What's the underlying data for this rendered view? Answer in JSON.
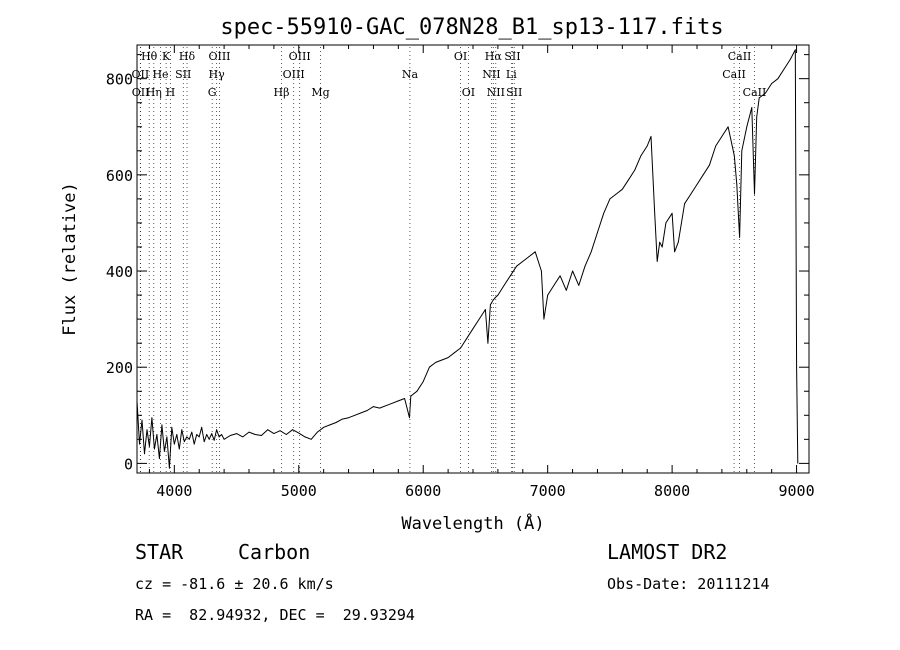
{
  "chart_data": {
    "type": "line",
    "title": "spec-55910-GAC_078N28_B1_sp13-117.fits",
    "xlabel": "Wavelength (Å)",
    "ylabel": "Flux (relative)",
    "xlim": [
      3700,
      9100
    ],
    "ylim": [
      -20,
      870
    ],
    "x_ticks": [
      4000,
      5000,
      6000,
      7000,
      8000,
      9000
    ],
    "y_ticks": [
      0,
      200,
      400,
      600,
      800
    ],
    "grid": false,
    "series": [
      {
        "x": [
          3700,
          3720,
          3740,
          3760,
          3780,
          3800,
          3820,
          3840,
          3860,
          3880,
          3900,
          3920,
          3940,
          3960,
          3980,
          4000,
          4020,
          4040,
          4060,
          4080,
          4100,
          4120,
          4140,
          4160,
          4180,
          4200,
          4220,
          4240,
          4260,
          4280,
          4300,
          4320,
          4340,
          4360,
          4380,
          4400,
          4450,
          4500,
          4550,
          4600,
          4650,
          4700,
          4750,
          4800,
          4850,
          4900,
          4950,
          5000,
          5050,
          5100,
          5150,
          5200,
          5250,
          5300,
          5350,
          5400,
          5450,
          5500,
          5550,
          5600,
          5650,
          5700,
          5750,
          5800,
          5850,
          5890,
          5900,
          5950,
          6000,
          6050,
          6100,
          6150,
          6200,
          6250,
          6300,
          6350,
          6400,
          6450,
          6500,
          6520,
          6540,
          6563,
          6580,
          6600,
          6650,
          6700,
          6750,
          6800,
          6850,
          6900,
          6950,
          6970,
          7000,
          7050,
          7100,
          7150,
          7200,
          7250,
          7300,
          7350,
          7400,
          7450,
          7500,
          7550,
          7600,
          7650,
          7700,
          7750,
          7800,
          7830,
          7860,
          7880,
          7900,
          7920,
          7950,
          8000,
          8020,
          8050,
          8100,
          8150,
          8200,
          8250,
          8300,
          8350,
          8400,
          8450,
          8500,
          8520,
          8542,
          8560,
          8600,
          8640,
          8662,
          8680,
          8700,
          8750,
          8800,
          8850,
          8900,
          8950,
          8990,
          9000,
          9010
        ],
        "values": [
          130,
          40,
          90,
          20,
          70,
          35,
          95,
          30,
          60,
          10,
          80,
          25,
          55,
          -10,
          75,
          40,
          60,
          30,
          70,
          45,
          55,
          50,
          65,
          40,
          60,
          55,
          75,
          45,
          60,
          50,
          62,
          48,
          70,
          55,
          60,
          50,
          58,
          62,
          55,
          65,
          60,
          58,
          70,
          62,
          68,
          60,
          70,
          63,
          55,
          50,
          65,
          75,
          80,
          85,
          92,
          95,
          100,
          105,
          110,
          118,
          115,
          120,
          125,
          130,
          135,
          95,
          140,
          150,
          170,
          200,
          210,
          215,
          220,
          230,
          240,
          260,
          280,
          300,
          320,
          250,
          330,
          340,
          345,
          350,
          370,
          390,
          410,
          420,
          430,
          440,
          400,
          300,
          350,
          370,
          390,
          360,
          400,
          370,
          410,
          440,
          480,
          520,
          550,
          560,
          570,
          590,
          610,
          640,
          660,
          680,
          520,
          420,
          460,
          450,
          500,
          520,
          440,
          460,
          540,
          560,
          580,
          600,
          620,
          660,
          680,
          700,
          640,
          580,
          470,
          650,
          700,
          740,
          560,
          720,
          760,
          770,
          790,
          800,
          820,
          840,
          860,
          200,
          0
        ]
      }
    ],
    "line_markers": [
      {
        "label": "Hθ",
        "wavelength": 3798,
        "row": 0
      },
      {
        "label": "OII",
        "wavelength": 3727,
        "row": 1
      },
      {
        "label": "OII",
        "wavelength": 3729,
        "row": 2
      },
      {
        "label": "Hη",
        "wavelength": 3835,
        "row": 2
      },
      {
        "label": "He",
        "wavelength": 3889,
        "row": 1
      },
      {
        "label": "K",
        "wavelength": 3934,
        "row": 0
      },
      {
        "label": "H",
        "wavelength": 3969,
        "row": 2
      },
      {
        "label": "SII",
        "wavelength": 4072,
        "row": 1
      },
      {
        "label": "Hδ",
        "wavelength": 4102,
        "row": 0
      },
      {
        "label": "G",
        "wavelength": 4304,
        "row": 2
      },
      {
        "label": "Hγ",
        "wavelength": 4340,
        "row": 1
      },
      {
        "label": "OIII",
        "wavelength": 4363,
        "row": 0
      },
      {
        "label": "Hβ",
        "wavelength": 4861,
        "row": 2
      },
      {
        "label": "OIII",
        "wavelength": 4959,
        "row": 1
      },
      {
        "label": "OIII",
        "wavelength": 5007,
        "row": 0
      },
      {
        "label": "Mg",
        "wavelength": 5175,
        "row": 2
      },
      {
        "label": "Na",
        "wavelength": 5893,
        "row": 1
      },
      {
        "label": "OI",
        "wavelength": 6300,
        "row": 0
      },
      {
        "label": "OI",
        "wavelength": 6363,
        "row": 2
      },
      {
        "label": "NII",
        "wavelength": 6548,
        "row": 1
      },
      {
        "label": "Hα",
        "wavelength": 6563,
        "row": 0
      },
      {
        "label": "NII",
        "wavelength": 6583,
        "row": 2
      },
      {
        "label": "Li",
        "wavelength": 6708,
        "row": 1
      },
      {
        "label": "SII",
        "wavelength": 6717,
        "row": 0
      },
      {
        "label": "SII",
        "wavelength": 6731,
        "row": 2
      },
      {
        "label": "CaII",
        "wavelength": 8498,
        "row": 1
      },
      {
        "label": "CaII",
        "wavelength": 8542,
        "row": 0
      },
      {
        "label": "CaII",
        "wavelength": 8662,
        "row": 2
      }
    ]
  },
  "info": {
    "object_class": "STAR",
    "subclass": "Carbon",
    "survey": "LAMOST DR2",
    "redshift_text": "cz = -81.6 ± 20.6 km/s",
    "obs_date": "Obs-Date: 20111214",
    "coords": "RA =  82.94932, DEC =  29.93294"
  }
}
